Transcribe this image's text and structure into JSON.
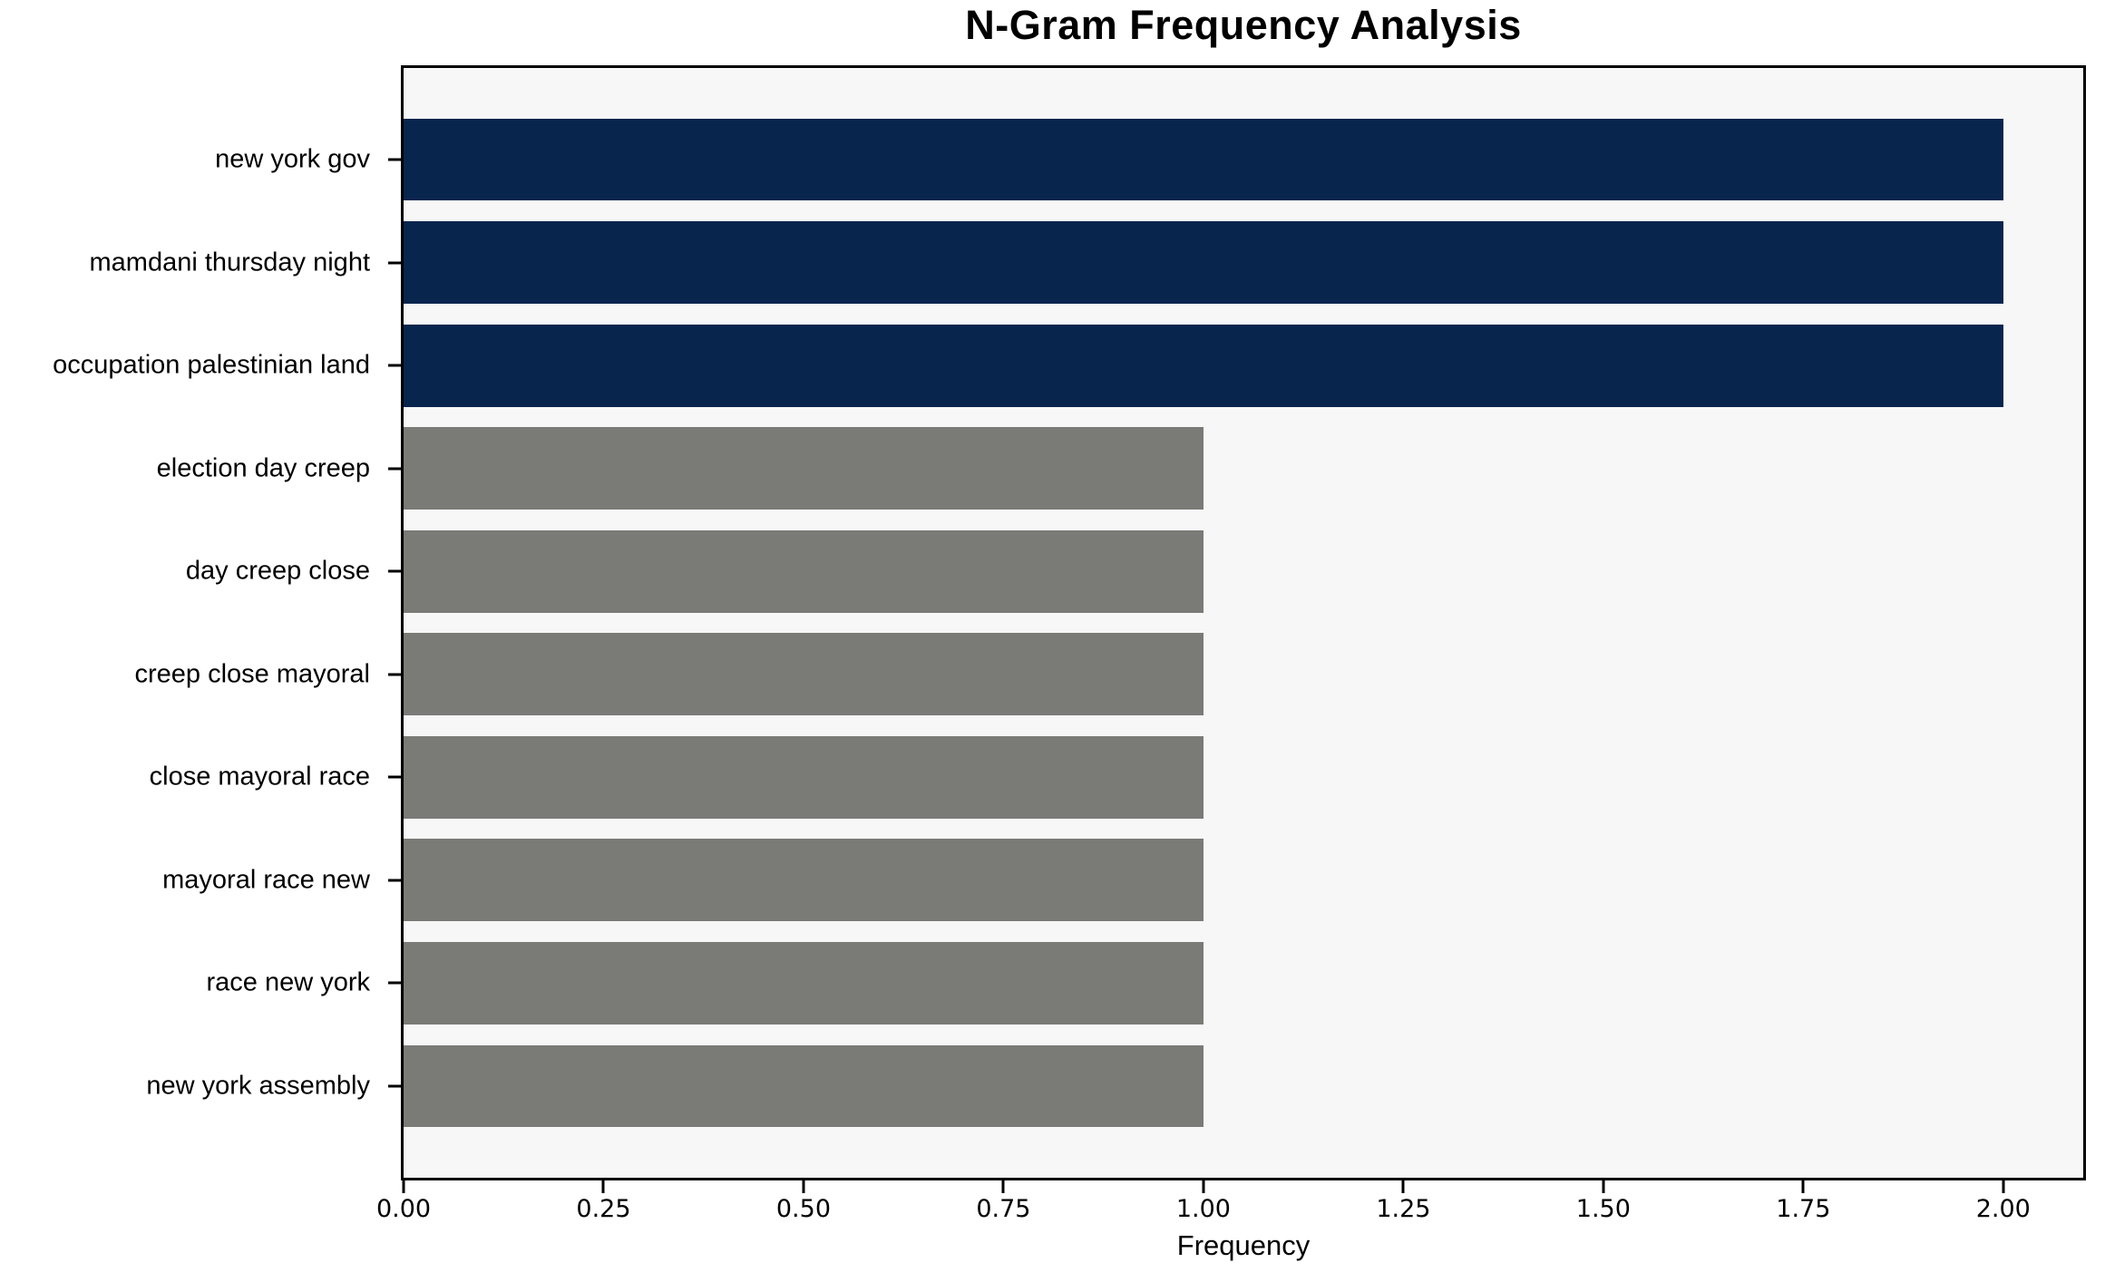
{
  "chart_data": {
    "type": "bar",
    "orientation": "horizontal",
    "title": "N-Gram Frequency Analysis",
    "xlabel": "Frequency",
    "ylabel": "",
    "categories": [
      "new york gov",
      "mamdani thursday night",
      "occupation palestinian land",
      "election day creep",
      "day creep close",
      "creep close mayoral",
      "close mayoral race",
      "mayoral race new",
      "race new york",
      "new york assembly"
    ],
    "values": [
      2,
      2,
      2,
      1,
      1,
      1,
      1,
      1,
      1,
      1
    ],
    "bar_colors": [
      "#08254e",
      "#08254e",
      "#08254e",
      "#7a7a76",
      "#7a7a76",
      "#7a7a76",
      "#7a7a76",
      "#7a7a76",
      "#7a7a76",
      "#7a7a76"
    ],
    "xlim": [
      0,
      2.1
    ],
    "xticks": [
      0,
      0.25,
      0.5,
      0.75,
      1.0,
      1.25,
      1.5,
      1.75,
      2.0
    ],
    "xtick_labels": [
      "0.00",
      "0.25",
      "0.50",
      "0.75",
      "1.00",
      "1.25",
      "1.50",
      "1.75",
      "2.00"
    ],
    "bar_height_frac": 0.8,
    "grid": false,
    "legend": null,
    "colors": {
      "plot_bg": "#f7f7f7",
      "figure_bg": "#ffffff",
      "axis": "#000000",
      "text": "#000000",
      "highlight": "#08254e",
      "muted": "#7a7a76"
    }
  }
}
